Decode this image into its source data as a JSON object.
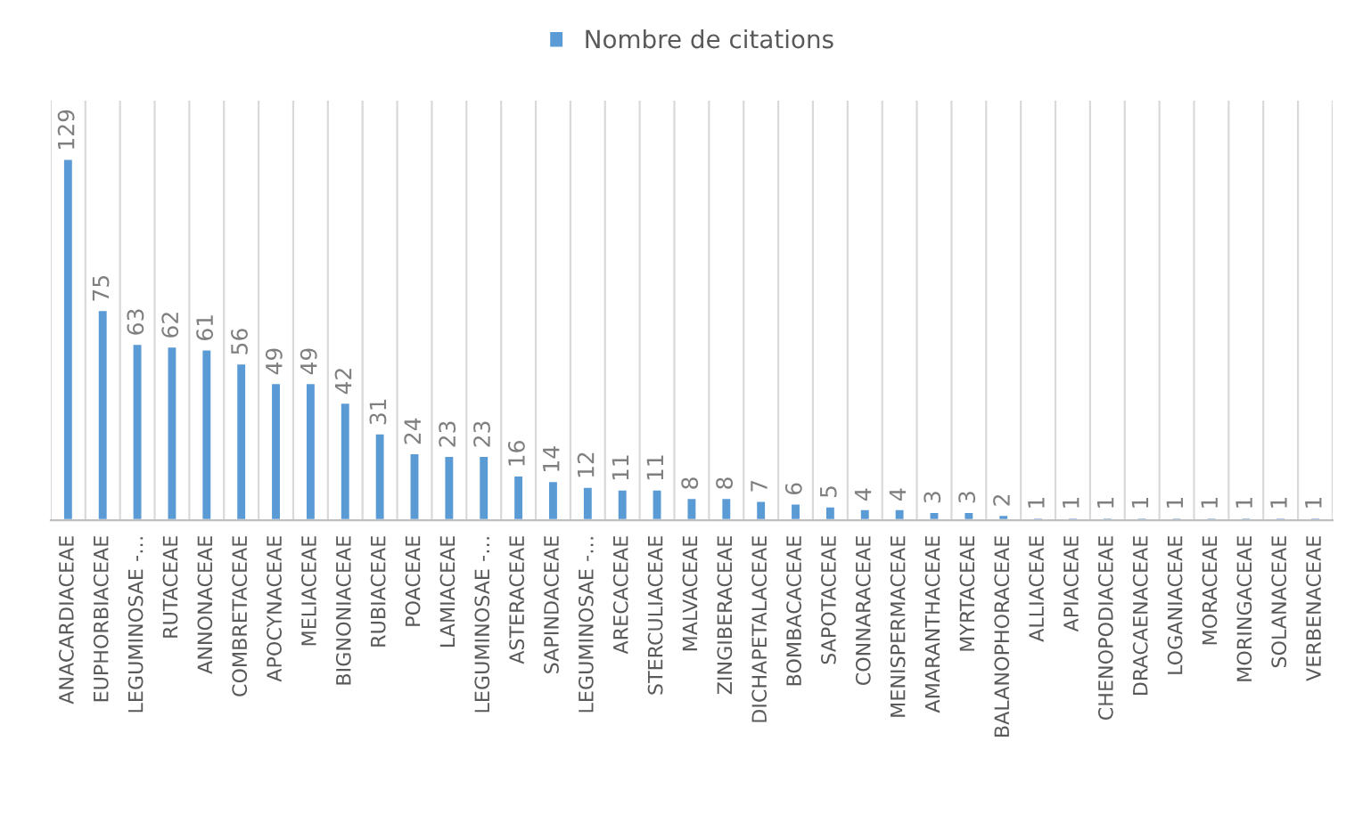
{
  "chart_data": {
    "type": "bar",
    "categories": [
      "ANACARDIACEAE",
      "EUPHORBIACEAE",
      "LEGUMINOSAE -…",
      "RUTACEAE",
      "ANNONACEAE",
      "COMBRETACEAE",
      "APOCYNACEAE",
      "MELIACEAE",
      "BIGNONIACEAE",
      "RUBIACEAE",
      "POACEAE",
      "LAMIACEAE",
      "LEGUMINOSAE -…",
      "ASTERACEAE",
      "SAPINDACEAE",
      "LEGUMINOSAE -…",
      "ARECACEAE",
      "STERCULIACEAE",
      "MALVACEAE",
      "ZINGIBERACEAE",
      "DICHAPETALACEAE",
      "BOMBACACEAE",
      "SAPOTACEAE",
      "CONNARACEAE",
      "MENISPERMACEAE",
      "AMARANTHACEAE",
      "MYRTACEAE",
      "BALANOPHORACEAE",
      "ALLIACEAE",
      "APIACEAE",
      "CHENOPODIACEAE",
      "DRACAENACEAE",
      "LOGANIACEAE",
      "MORACEAE",
      "MORINGACEAE",
      "SOLANACEAE",
      "VERBENACEAE"
    ],
    "series": [
      {
        "name": "Nombre de citations",
        "color": "#5b9bd5",
        "values": [
          129,
          75,
          63,
          62,
          61,
          56,
          49,
          49,
          42,
          31,
          24,
          23,
          23,
          16,
          14,
          12,
          11,
          11,
          8,
          8,
          7,
          6,
          5,
          4,
          4,
          3,
          3,
          2,
          1,
          1,
          1,
          1,
          1,
          1,
          1,
          1,
          1
        ]
      }
    ],
    "data_labels": true,
    "grid": "x",
    "legend": "top"
  }
}
